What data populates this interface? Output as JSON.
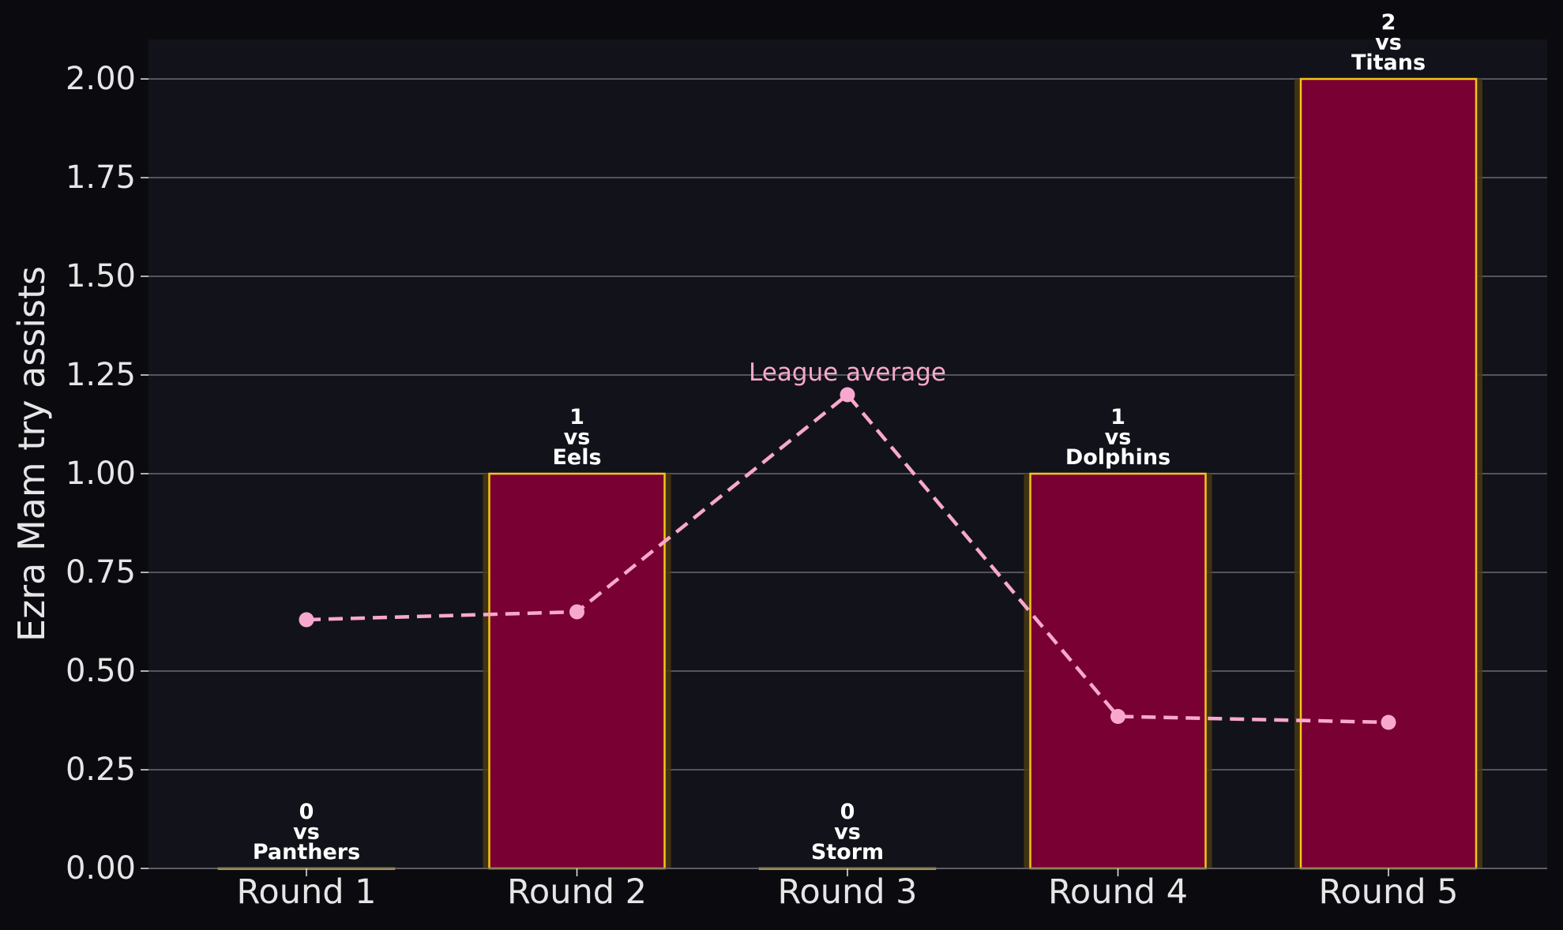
{
  "chart_data": {
    "type": "bar",
    "categories": [
      "Round 1",
      "Round 2",
      "Round 3",
      "Round 4",
      "Round 5"
    ],
    "series": [
      {
        "values": [
          0,
          1,
          0,
          1,
          2
        ]
      },
      {
        "name": "League average",
        "type": "line",
        "values": [
          0.63,
          0.65,
          1.2,
          0.385,
          0.37
        ]
      }
    ],
    "bar_labels": [
      [
        "0",
        "vs",
        "Panthers"
      ],
      [
        "1",
        "vs",
        "Eels"
      ],
      [
        "0",
        "vs",
        "Storm"
      ],
      [
        "1",
        "vs",
        "Dolphins"
      ],
      [
        "2",
        "vs",
        "Titans"
      ]
    ],
    "ylabel": "Ezra Mam try assists",
    "xlabel": "",
    "ylim": [
      0,
      2.1
    ],
    "yticks": [
      "0.00",
      "0.25",
      "0.50",
      "0.75",
      "1.00",
      "1.25",
      "1.50",
      "1.75",
      "2.00"
    ],
    "line_label": "League average",
    "grid": "horizontal",
    "colors": {
      "background": "#0b0b0f",
      "plot_background": "#12131a",
      "bar_fill": "#780032",
      "bar_edge": "#f5c518",
      "bar_glow": "#4a3a12",
      "line": "#f8a8cf",
      "grid": "#6a6a6e",
      "text": "#e6e6e6",
      "label_text": "#ffffff"
    }
  }
}
